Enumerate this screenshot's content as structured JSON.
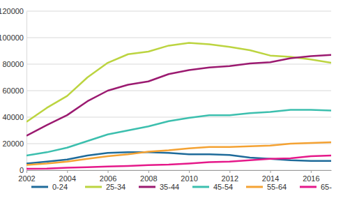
{
  "chart_data": {
    "type": "line",
    "x": [
      2002,
      2003,
      2004,
      2005,
      2006,
      2007,
      2008,
      2009,
      2010,
      2011,
      2012,
      2013,
      2014,
      2015,
      2016,
      2017
    ],
    "xlim": [
      2002,
      2017
    ],
    "xticks": [
      2002,
      2004,
      2006,
      2008,
      2010,
      2012,
      2014,
      2016
    ],
    "ylim": [
      0,
      120000
    ],
    "yticks": [
      0,
      20000,
      40000,
      60000,
      80000,
      100000,
      120000
    ],
    "grid": true,
    "legend": "bottom",
    "series": [
      {
        "name": "0-24",
        "color": "#1f6b9a",
        "values": [
          5000,
          6500,
          8000,
          11000,
          13000,
          13500,
          13500,
          13000,
          12000,
          12000,
          11500,
          9500,
          8500,
          7500,
          7000,
          7000
        ]
      },
      {
        "name": "25-34",
        "color": "#bcd440",
        "values": [
          36500,
          47000,
          56000,
          70000,
          81000,
          87500,
          89500,
          94000,
          96000,
          95000,
          93000,
          90500,
          86500,
          85500,
          83500,
          81000
        ]
      },
      {
        "name": "35-44",
        "color": "#9b1a70",
        "values": [
          26000,
          34000,
          41500,
          52000,
          60000,
          64500,
          67000,
          72500,
          75500,
          77500,
          78500,
          80500,
          81500,
          84500,
          86000,
          87000
        ]
      },
      {
        "name": "45-54",
        "color": "#3cbfae",
        "values": [
          11000,
          13500,
          17000,
          22000,
          27000,
          30000,
          33000,
          37000,
          39500,
          41500,
          41500,
          43000,
          44000,
          45500,
          45500,
          45000
        ]
      },
      {
        "name": "55-64",
        "color": "#f4a233",
        "values": [
          4000,
          5000,
          6500,
          8500,
          10500,
          12000,
          14000,
          15000,
          16500,
          17500,
          17500,
          18000,
          18500,
          20000,
          20500,
          21000
        ]
      },
      {
        "name": "65-",
        "color": "#e5198a",
        "values": [
          1000,
          1200,
          1800,
          2200,
          2800,
          3200,
          3800,
          4200,
          5000,
          6000,
          6500,
          7500,
          8500,
          9000,
          10500,
          11000
        ]
      }
    ]
  }
}
